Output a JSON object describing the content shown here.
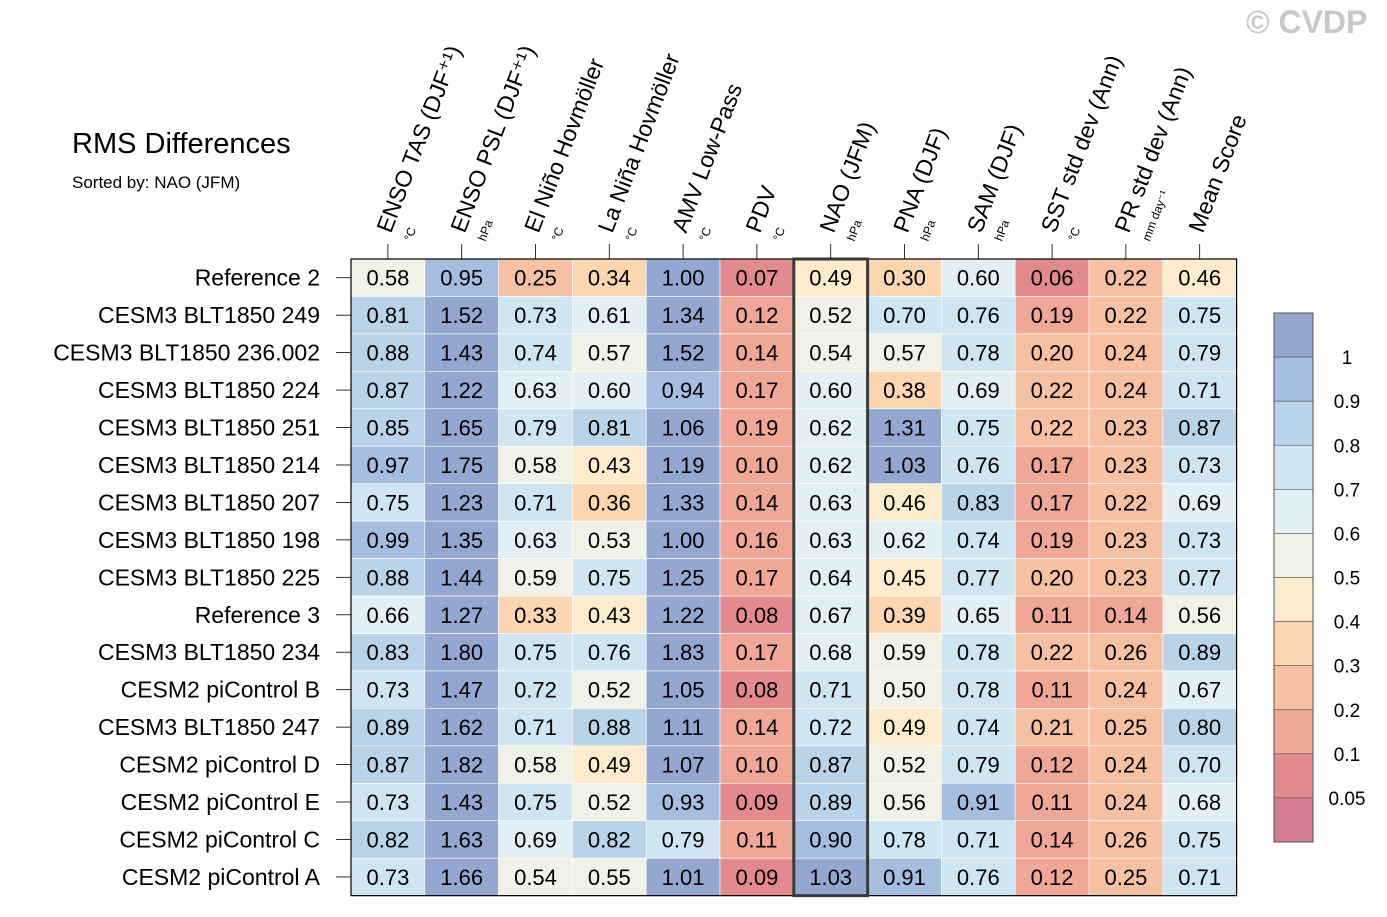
{
  "title": "RMS Differences",
  "subtitle": "Sorted by: NAO (JFM)",
  "copyright": "© CVDP",
  "chart_data": {
    "type": "heatmap",
    "title": "RMS Differences",
    "sorted_by": "NAO (JFM)",
    "highlighted_column": "NAO (JFM)",
    "columns": [
      {
        "name": "ENSO TAS (DJF⁺¹)",
        "unit": "°C"
      },
      {
        "name": "ENSO PSL (DJF⁺¹)",
        "unit": "hPa"
      },
      {
        "name": "El Niño Hovmöller",
        "unit": "°C"
      },
      {
        "name": "La Niña Hovmöller",
        "unit": "°C"
      },
      {
        "name": "AMV Low-Pass",
        "unit": "°C"
      },
      {
        "name": "PDV",
        "unit": "°C"
      },
      {
        "name": "NAO (JFM)",
        "unit": "hPa"
      },
      {
        "name": "PNA (DJF)",
        "unit": "hPa"
      },
      {
        "name": "SAM (DJF)",
        "unit": "hPa"
      },
      {
        "name": "SST std dev (Ann)",
        "unit": "°C"
      },
      {
        "name": "PR std dev (Ann)",
        "unit": "mm day⁻¹"
      },
      {
        "name": "Mean Score",
        "unit": ""
      }
    ],
    "rows": [
      {
        "name": "Reference 2",
        "values": [
          "0.58",
          "0.95",
          "0.25",
          "0.34",
          "1.00",
          "0.07",
          "0.49",
          "0.30",
          "0.60",
          "0.06",
          "0.22",
          "0.46"
        ]
      },
      {
        "name": "CESM3 BLT1850 249",
        "values": [
          "0.81",
          "1.52",
          "0.73",
          "0.61",
          "1.34",
          "0.12",
          "0.52",
          "0.70",
          "0.76",
          "0.19",
          "0.22",
          "0.75"
        ]
      },
      {
        "name": "CESM3 BLT1850 236.002",
        "values": [
          "0.88",
          "1.43",
          "0.74",
          "0.57",
          "1.52",
          "0.14",
          "0.54",
          "0.57",
          "0.78",
          "0.20",
          "0.24",
          "0.79"
        ]
      },
      {
        "name": "CESM3 BLT1850 224",
        "values": [
          "0.87",
          "1.22",
          "0.63",
          "0.60",
          "0.94",
          "0.17",
          "0.60",
          "0.38",
          "0.69",
          "0.22",
          "0.24",
          "0.71"
        ]
      },
      {
        "name": "CESM3 BLT1850 251",
        "values": [
          "0.85",
          "1.65",
          "0.79",
          "0.81",
          "1.06",
          "0.19",
          "0.62",
          "1.31",
          "0.75",
          "0.22",
          "0.23",
          "0.87"
        ]
      },
      {
        "name": "CESM3 BLT1850 214",
        "values": [
          "0.97",
          "1.75",
          "0.58",
          "0.43",
          "1.19",
          "0.10",
          "0.62",
          "1.03",
          "0.76",
          "0.17",
          "0.23",
          "0.73"
        ]
      },
      {
        "name": "CESM3 BLT1850 207",
        "values": [
          "0.75",
          "1.23",
          "0.71",
          "0.36",
          "1.33",
          "0.14",
          "0.63",
          "0.46",
          "0.83",
          "0.17",
          "0.22",
          "0.69"
        ]
      },
      {
        "name": "CESM3 BLT1850 198",
        "values": [
          "0.99",
          "1.35",
          "0.63",
          "0.53",
          "1.00",
          "0.16",
          "0.63",
          "0.62",
          "0.74",
          "0.19",
          "0.23",
          "0.73"
        ]
      },
      {
        "name": "CESM3 BLT1850 225",
        "values": [
          "0.88",
          "1.44",
          "0.59",
          "0.75",
          "1.25",
          "0.17",
          "0.64",
          "0.45",
          "0.77",
          "0.20",
          "0.23",
          "0.77"
        ]
      },
      {
        "name": "Reference 3",
        "values": [
          "0.66",
          "1.27",
          "0.33",
          "0.43",
          "1.22",
          "0.08",
          "0.67",
          "0.39",
          "0.65",
          "0.11",
          "0.14",
          "0.56"
        ]
      },
      {
        "name": "CESM3 BLT1850 234",
        "values": [
          "0.83",
          "1.80",
          "0.75",
          "0.76",
          "1.83",
          "0.17",
          "0.68",
          "0.59",
          "0.78",
          "0.22",
          "0.26",
          "0.89"
        ]
      },
      {
        "name": "CESM2 piControl B",
        "values": [
          "0.73",
          "1.47",
          "0.72",
          "0.52",
          "1.05",
          "0.08",
          "0.71",
          "0.50",
          "0.78",
          "0.11",
          "0.24",
          "0.67"
        ]
      },
      {
        "name": "CESM3 BLT1850 247",
        "values": [
          "0.89",
          "1.62",
          "0.71",
          "0.88",
          "1.11",
          "0.14",
          "0.72",
          "0.49",
          "0.74",
          "0.21",
          "0.25",
          "0.80"
        ]
      },
      {
        "name": "CESM2 piControl D",
        "values": [
          "0.87",
          "1.82",
          "0.58",
          "0.49",
          "1.07",
          "0.10",
          "0.87",
          "0.52",
          "0.79",
          "0.12",
          "0.24",
          "0.70"
        ]
      },
      {
        "name": "CESM2 piControl E",
        "values": [
          "0.73",
          "1.43",
          "0.75",
          "0.52",
          "0.93",
          "0.09",
          "0.89",
          "0.56",
          "0.91",
          "0.11",
          "0.24",
          "0.68"
        ]
      },
      {
        "name": "CESM2 piControl C",
        "values": [
          "0.82",
          "1.63",
          "0.69",
          "0.82",
          "0.79",
          "0.11",
          "0.90",
          "0.78",
          "0.71",
          "0.14",
          "0.26",
          "0.75"
        ]
      },
      {
        "name": "CESM2 piControl A",
        "values": [
          "0.73",
          "1.66",
          "0.54",
          "0.55",
          "1.01",
          "0.09",
          "1.03",
          "0.91",
          "0.76",
          "0.12",
          "0.25",
          "0.71"
        ]
      }
    ],
    "colorbar": {
      "labels": [
        "1",
        "0.9",
        "0.8",
        "0.7",
        "0.6",
        "0.5",
        "0.4",
        "0.3",
        "0.2",
        "0.1",
        "0.05"
      ],
      "bounds": [
        0.05,
        0.1,
        0.2,
        0.3,
        0.4,
        0.5,
        0.6,
        0.7,
        0.8,
        0.9,
        1
      ],
      "colors": [
        "#d27c90",
        "#e38a8f",
        "#f0a796",
        "#f6c1a3",
        "#fbd6b1",
        "#fdeccb",
        "#f1f1e6",
        "#e2eff5",
        "#cfe5f1",
        "#b9d3e8",
        "#a5bdde",
        "#94a7d1"
      ]
    }
  }
}
